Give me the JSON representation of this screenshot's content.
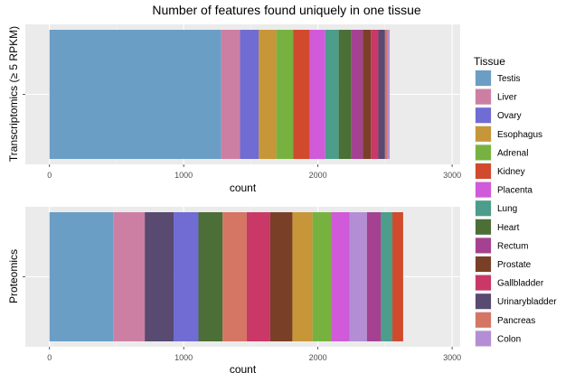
{
  "chart_data": {
    "type": "bar",
    "title": "Number of features found uniquely in one tissue",
    "xlabel": "count",
    "xlim": [
      -180,
      3060
    ],
    "xticks": [
      0,
      1000,
      2000,
      3000
    ],
    "xtick_labels": [
      "0",
      "1000",
      "2000",
      "3000"
    ],
    "stacked": true,
    "orientation": "horizontal",
    "grid": true,
    "legend": {
      "title": "Tissue",
      "placement": "right",
      "entries": [
        {
          "name": "Testis",
          "color": "#6a9ec5"
        },
        {
          "name": "Liver",
          "color": "#cd7fa3"
        },
        {
          "name": "Ovary",
          "color": "#706cd3"
        },
        {
          "name": "Esophagus",
          "color": "#c69639"
        },
        {
          "name": "Adrenal",
          "color": "#77b241"
        },
        {
          "name": "Kidney",
          "color": "#d14a2d"
        },
        {
          "name": "Placenta",
          "color": "#d05ad9"
        },
        {
          "name": "Lung",
          "color": "#4c9d8a"
        },
        {
          "name": "Heart",
          "color": "#4c6e37"
        },
        {
          "name": "Rectum",
          "color": "#a44291"
        },
        {
          "name": "Prostate",
          "color": "#7a4027"
        },
        {
          "name": "Gallbladder",
          "color": "#c93867"
        },
        {
          "name": "Urinarybladder",
          "color": "#584a70"
        },
        {
          "name": "Pancreas",
          "color": "#d57564"
        },
        {
          "name": "Colon",
          "color": "#b38ed4"
        }
      ]
    },
    "panels": [
      {
        "ylabel": "Transcriptomics (≥ 5 RPKM)",
        "segments": [
          {
            "tissue": "Testis",
            "value": 1280
          },
          {
            "tissue": "Liver",
            "value": 140
          },
          {
            "tissue": "Ovary",
            "value": 140
          },
          {
            "tissue": "Esophagus",
            "value": 130
          },
          {
            "tissue": "Adrenal",
            "value": 125
          },
          {
            "tissue": "Kidney",
            "value": 125
          },
          {
            "tissue": "Placenta",
            "value": 115
          },
          {
            "tissue": "Lung",
            "value": 100
          },
          {
            "tissue": "Heart",
            "value": 95
          },
          {
            "tissue": "Rectum",
            "value": 85
          },
          {
            "tissue": "Prostate",
            "value": 60
          },
          {
            "tissue": "Gallbladder",
            "value": 55
          },
          {
            "tissue": "Urinarybladder",
            "value": 50
          },
          {
            "tissue": "Pancreas",
            "value": 20
          },
          {
            "tissue": "Colon",
            "value": 15
          }
        ]
      },
      {
        "ylabel": "Proteomics",
        "segments": [
          {
            "tissue": "Testis",
            "value": 475
          },
          {
            "tissue": "Liver",
            "value": 235
          },
          {
            "tissue": "Urinarybladder",
            "value": 215
          },
          {
            "tissue": "Ovary",
            "value": 185
          },
          {
            "tissue": "Heart",
            "value": 180
          },
          {
            "tissue": "Pancreas",
            "value": 180
          },
          {
            "tissue": "Gallbladder",
            "value": 175
          },
          {
            "tissue": "Prostate",
            "value": 165
          },
          {
            "tissue": "Esophagus",
            "value": 150
          },
          {
            "tissue": "Adrenal",
            "value": 140
          },
          {
            "tissue": "Placenta",
            "value": 135
          },
          {
            "tissue": "Colon",
            "value": 130
          },
          {
            "tissue": "Rectum",
            "value": 105
          },
          {
            "tissue": "Lung",
            "value": 85
          },
          {
            "tissue": "Kidney",
            "value": 80
          }
        ]
      }
    ]
  }
}
